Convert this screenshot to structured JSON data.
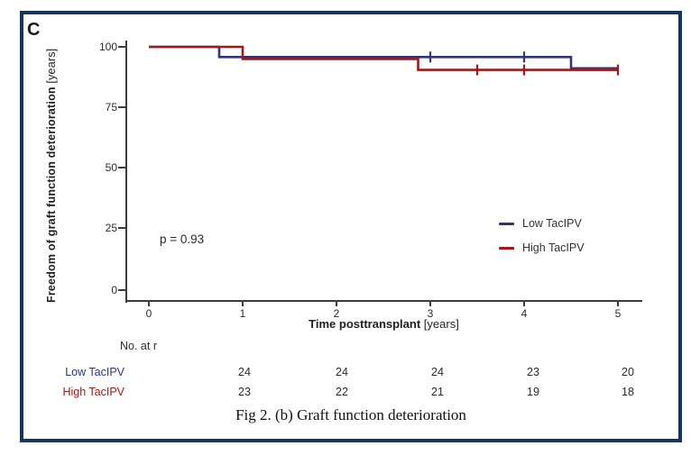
{
  "figure": {
    "panel_label": "C",
    "caption": "Fig 2. (b) Graft function deterioration",
    "border_color": "#17365d"
  },
  "chart_data": {
    "type": "line",
    "subtype": "kaplan_meier_step",
    "title": "",
    "xlabel": "Time posttransplant [years]",
    "xlabel_bold": "Time posttransplant",
    "xlabel_unit": " [years]",
    "ylabel": "Freedom of graft function deterioration [years]",
    "ylabel_bold": "Freedom of graft function deterioration",
    "ylabel_unit": " [years]",
    "xlim": [
      0,
      5
    ],
    "ylim": [
      0,
      100
    ],
    "x_ticks": [
      "0",
      "1",
      "2",
      "3",
      "4",
      "5"
    ],
    "y_ticks": [
      "100",
      "75",
      "50",
      "25",
      "0"
    ],
    "grid": false,
    "annotation": "p = 0.93",
    "legend_position": "right-middle",
    "series": [
      {
        "name": "Low TacIPV",
        "color": "#31347e",
        "steps": [
          [
            0,
            100
          ],
          [
            0.75,
            100
          ],
          [
            0.75,
            95.8
          ],
          [
            4.5,
            95.8
          ],
          [
            4.5,
            91.2
          ],
          [
            5,
            91.2
          ]
        ],
        "censor_marks": [
          [
            3.0,
            95.8
          ],
          [
            4.0,
            95.8
          ]
        ]
      },
      {
        "name": "High TacIPV",
        "color": "#9b1b1b",
        "steps": [
          [
            0,
            100
          ],
          [
            1.0,
            100
          ],
          [
            1.0,
            95.0
          ],
          [
            2.87,
            95.0
          ],
          [
            2.87,
            90.5
          ],
          [
            5,
            90.5
          ]
        ],
        "censor_marks": [
          [
            3.5,
            90.5
          ],
          [
            4.0,
            90.5
          ],
          [
            5.0,
            90.5
          ]
        ]
      }
    ],
    "risk_table": {
      "header": "No. at r",
      "time_points": [
        "1",
        "2",
        "3",
        "4",
        "5"
      ],
      "rows": [
        {
          "label": "Low TacIPV",
          "color": "#31347e",
          "values": [
            "24",
            "24",
            "24",
            "23",
            "20"
          ]
        },
        {
          "label": "High TacIPV",
          "color": "#9b1b1b",
          "values": [
            "23",
            "22",
            "21",
            "19",
            "18"
          ]
        }
      ]
    }
  }
}
